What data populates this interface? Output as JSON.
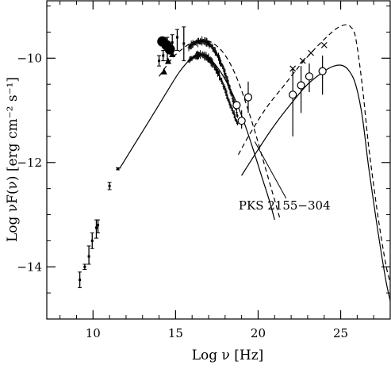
{
  "chart_data": {
    "type": "scatter",
    "title": "",
    "xlabel": "Log ν [Hz]",
    "ylabel": "Log νF(ν) [erg cm⁻² s⁻¹]",
    "xlim": [
      7.2,
      28
    ],
    "ylim": [
      -15.0,
      -8.9
    ],
    "grid": false,
    "legend": "none",
    "x_ticks": [
      10,
      15,
      20,
      25
    ],
    "x_tick_labels": [
      "10",
      "15",
      "20",
      "25"
    ],
    "y_ticks": [
      -10,
      -12,
      -14
    ],
    "y_tick_labels": [
      "−10",
      "−12",
      "−14"
    ],
    "annotation": {
      "text": "PKS 2155−304",
      "x": 21.6,
      "y": -12.9,
      "arrow_to": [
        19.8,
        -11.6
      ]
    },
    "series": [
      {
        "style": "solid-line",
        "x": [
          11.6,
          12.5,
          13.5,
          14.5,
          15.2,
          15.8,
          16.3,
          16.7,
          17.2,
          17.8,
          18.4,
          19.0,
          19.6,
          20.2,
          20.7,
          21.0
        ],
        "y": [
          -12.12,
          -11.66,
          -11.15,
          -10.63,
          -10.28,
          -10.05,
          -9.94,
          -9.94,
          -10.05,
          -10.3,
          -10.65,
          -11.1,
          -11.65,
          -12.25,
          -12.75,
          -13.1
        ]
      },
      {
        "style": "dashed-line",
        "x": [
          14.0,
          14.8,
          15.5,
          16.0,
          16.5,
          16.9,
          17.3,
          17.8,
          18.3,
          18.8,
          19.3,
          19.8,
          20.3,
          20.8,
          21.3
        ],
        "y": [
          -10.35,
          -10.0,
          -9.8,
          -9.7,
          -9.65,
          -9.66,
          -9.72,
          -9.86,
          -10.1,
          -10.45,
          -10.9,
          -11.4,
          -11.95,
          -12.5,
          -13.05
        ]
      },
      {
        "style": "solid-line",
        "x": [
          19.0,
          20.0,
          21.0,
          22.0,
          23.0,
          24.0,
          24.6,
          25.1,
          25.5,
          25.9,
          26.3,
          26.7,
          27.2,
          27.7,
          28.0
        ],
        "y": [
          -12.25,
          -11.75,
          -11.28,
          -10.87,
          -10.5,
          -10.25,
          -10.15,
          -10.14,
          -10.24,
          -10.5,
          -11.1,
          -12.1,
          -13.2,
          -14.2,
          -14.65
        ]
      },
      {
        "style": "dashed-line",
        "x": [
          18.8,
          19.5,
          20.5,
          21.5,
          22.5,
          23.5,
          24.2,
          24.8,
          25.3,
          25.6,
          25.9,
          26.3,
          26.7,
          27.2,
          27.7,
          28.0
        ],
        "y": [
          -11.85,
          -11.45,
          -10.95,
          -10.55,
          -10.15,
          -9.8,
          -9.58,
          -9.42,
          -9.36,
          -9.4,
          -9.6,
          -10.5,
          -11.7,
          -12.9,
          -13.9,
          -14.3
        ]
      },
      {
        "style": "error-bar",
        "points": [
          {
            "x": 9.2,
            "y": -14.25,
            "lo": -14.4,
            "hi": -14.1
          },
          {
            "x": 9.5,
            "y": -14.0,
            "lo": -14.05,
            "hi": -13.95
          },
          {
            "x": 9.75,
            "y": -13.8,
            "lo": -13.95,
            "hi": -13.6
          },
          {
            "x": 9.95,
            "y": -13.5,
            "lo": -13.65,
            "hi": -13.35
          },
          {
            "x": 10.2,
            "y": -13.25,
            "lo": -13.45,
            "hi": -13.1
          },
          {
            "x": 10.3,
            "y": -13.2,
            "lo": -13.35,
            "hi": -13.1
          },
          {
            "x": 11.0,
            "y": -12.45,
            "lo": -12.52,
            "hi": -12.38
          },
          {
            "x": 11.5,
            "y": -12.12,
            "lo": -12.14,
            "hi": -12.1
          },
          {
            "x": 14.0,
            "y": -10.05,
            "lo": -10.15,
            "hi": -9.95
          },
          {
            "x": 14.25,
            "y": -9.95,
            "lo": -10.05,
            "hi": -9.85
          },
          {
            "x": 14.5,
            "y": -9.8,
            "lo": -10.05,
            "hi": -9.6
          },
          {
            "x": 14.8,
            "y": -9.7,
            "lo": -9.95,
            "hi": -9.55
          },
          {
            "x": 15.1,
            "y": -9.6,
            "lo": -9.85,
            "hi": -9.45
          },
          {
            "x": 15.5,
            "y": -9.72,
            "lo": -10.05,
            "hi": -9.4
          }
        ]
      },
      {
        "style": "filled-circle",
        "points": [
          {
            "x": 14.2,
            "y": -9.68
          },
          {
            "x": 14.45,
            "y": -9.75
          },
          {
            "x": 14.65,
            "y": -9.83
          }
        ]
      },
      {
        "style": "filled-triangle",
        "points": [
          {
            "x": 14.3,
            "y": -10.25
          },
          {
            "x": 14.55,
            "y": -10.05
          },
          {
            "x": 14.8,
            "y": -9.92
          }
        ]
      },
      {
        "style": "dense-data-upper",
        "x": [
          15.8,
          16.1,
          16.4,
          16.7,
          17.0,
          17.3,
          17.6,
          17.9,
          18.2,
          18.5,
          18.8
        ],
        "y": [
          -9.8,
          -9.72,
          -9.68,
          -9.68,
          -9.72,
          -9.82,
          -9.98,
          -10.2,
          -10.5,
          -10.82,
          -11.15
        ]
      },
      {
        "style": "dense-data-lower",
        "x": [
          15.8,
          16.1,
          16.4,
          16.7,
          17.0,
          17.3,
          17.6,
          17.9,
          18.2,
          18.5,
          18.8
        ],
        "y": [
          -10.05,
          -9.98,
          -9.94,
          -9.95,
          -10.0,
          -10.12,
          -10.3,
          -10.52,
          -10.8,
          -11.05,
          -11.3
        ]
      },
      {
        "style": "open-circle-error",
        "points": [
          {
            "x": 18.7,
            "y": -10.9,
            "lo": -10.98,
            "hi": -10.82
          },
          {
            "x": 19.0,
            "y": -11.2,
            "lo": -11.35,
            "hi": -11.0
          },
          {
            "x": 19.4,
            "y": -10.75,
            "lo": -11.05,
            "hi": -10.45
          },
          {
            "x": 22.1,
            "y": -10.7,
            "lo": -11.5,
            "hi": -10.2
          },
          {
            "x": 22.6,
            "y": -10.52,
            "lo": -11.05,
            "hi": -10.15
          },
          {
            "x": 23.1,
            "y": -10.35,
            "lo": -10.65,
            "hi": -10.1
          },
          {
            "x": 23.9,
            "y": -10.25,
            "lo": -10.7,
            "hi": -9.95
          }
        ]
      },
      {
        "style": "cross",
        "points": [
          {
            "x": 22.1,
            "y": -10.2
          },
          {
            "x": 22.7,
            "y": -10.05
          },
          {
            "x": 23.2,
            "y": -9.9
          },
          {
            "x": 24.0,
            "y": -9.75
          }
        ]
      }
    ]
  }
}
